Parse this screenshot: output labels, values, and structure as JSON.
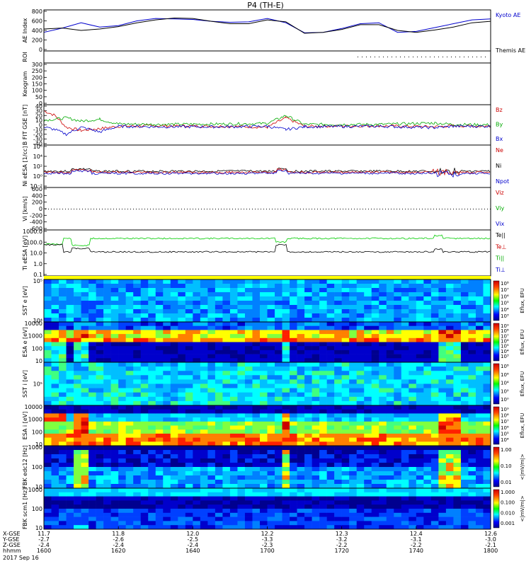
{
  "title": "P4 (TH-E)",
  "chart_data": {
    "type": "line",
    "title": "P4 (TH-E)",
    "date": "2017 Sep 16",
    "panels": [
      {
        "id": "ae",
        "ylabel": "AE Index",
        "yticks": [
          "0",
          "200",
          "400",
          "600",
          "800"
        ],
        "legend": [
          {
            "text": "Kyoto AE",
            "color": "#0000cc"
          },
          {
            "text": "Themis AE",
            "color": "#000000"
          }
        ],
        "series": [
          {
            "name": "Kyoto AE",
            "color": "#0000cc",
            "x": [
              "16:00",
              "16:05",
              "16:10",
              "16:15",
              "16:20",
              "16:25",
              "16:30",
              "16:35",
              "16:40",
              "16:45",
              "16:50",
              "16:55",
              "17:00",
              "17:05",
              "17:10",
              "17:15",
              "17:20",
              "17:25",
              "17:30",
              "17:35",
              "17:40",
              "17:45",
              "17:50",
              "17:55",
              "18:00"
            ],
            "y": [
              360,
              450,
              560,
              470,
              500,
              600,
              650,
              640,
              630,
              590,
              570,
              580,
              650,
              560,
              350,
              360,
              440,
              540,
              560,
              360,
              380,
              460,
              540,
              620,
              640
            ]
          },
          {
            "name": "Themis AE",
            "color": "#000000",
            "x": [
              "16:00",
              "16:05",
              "16:10",
              "16:15",
              "16:20",
              "16:25",
              "16:30",
              "16:35",
              "16:40",
              "16:45",
              "16:50",
              "16:55",
              "17:00",
              "17:05",
              "17:10",
              "17:15",
              "17:20",
              "17:25",
              "17:30",
              "17:35",
              "17:40",
              "17:45",
              "17:50",
              "17:55",
              "18:00"
            ],
            "y": [
              430,
              450,
              400,
              430,
              480,
              560,
              620,
              660,
              650,
              590,
              540,
              540,
              620,
              580,
              340,
              360,
              420,
              520,
              520,
              400,
              360,
              410,
              470,
              560,
              590
            ]
          }
        ]
      },
      {
        "id": "roi",
        "ylabel": "ROI",
        "yticks": [],
        "note": "dotted"
      },
      {
        "id": "keogram",
        "ylabel": "Keogram",
        "yticks": [
          "0",
          "50",
          "100",
          "150",
          "200",
          "250",
          "300"
        ]
      },
      {
        "id": "bfgm",
        "ylabel": "B FIT GSE [nT]",
        "yticks": [
          "-40",
          "-30",
          "-20",
          "-10",
          "0",
          "10",
          "20",
          "30",
          "40"
        ],
        "legend": [
          {
            "text": "Bz",
            "color": "#cc0000"
          },
          {
            "text": "By",
            "color": "#00aa00"
          },
          {
            "text": "Bx",
            "color": "#0000cc"
          }
        ],
        "series": [
          {
            "name": "Bz",
            "color": "#cc0000",
            "x": [
              "16:00",
              "16:03",
              "16:06",
              "16:10",
              "16:15",
              "16:20",
              "16:30",
              "16:50",
              "17:00",
              "17:05",
              "17:10",
              "17:30",
              "17:45",
              "17:50",
              "18:00"
            ],
            "y": [
              30,
              20,
              -5,
              -12,
              -8,
              -3,
              -2,
              -3,
              -5,
              15,
              -3,
              -2,
              -4,
              -2,
              -3
            ]
          },
          {
            "name": "By",
            "color": "#00aa00",
            "x": [
              "16:00",
              "16:03",
              "16:06",
              "16:10",
              "16:15",
              "16:20",
              "16:30",
              "16:50",
              "17:00",
              "17:05",
              "17:10",
              "17:30",
              "17:45",
              "17:50",
              "18:00"
            ],
            "y": [
              10,
              12,
              15,
              8,
              12,
              2,
              1,
              2,
              3,
              20,
              1,
              1,
              4,
              1,
              0
            ]
          },
          {
            "name": "Bx",
            "color": "#0000cc",
            "x": [
              "16:00",
              "16:03",
              "16:06",
              "16:10",
              "16:15",
              "16:20",
              "16:30",
              "16:50",
              "17:00",
              "17:05",
              "17:10",
              "17:30",
              "17:45",
              "17:50",
              "18:00"
            ],
            "y": [
              -5,
              -10,
              -20,
              -5,
              -15,
              -3,
              -4,
              -4,
              -3,
              -10,
              -4,
              -3,
              -6,
              -3,
              -3
            ]
          }
        ]
      },
      {
        "id": "ni",
        "ylabel": "Ni eESA [1/cc]",
        "yticks": [
          "10⁻²",
          "10⁰",
          "10²",
          "10⁴",
          "10⁶"
        ],
        "legend": [
          {
            "text": "Ne",
            "color": "#cc0000"
          },
          {
            "text": "Ni",
            "color": "#000000"
          },
          {
            "text": "Npot",
            "color": "#0000cc"
          }
        ]
      },
      {
        "id": "vi",
        "ylabel": "Vi [km/s]",
        "yticks": [
          "-600",
          "-400",
          "-200",
          "0",
          "200",
          "400",
          "600"
        ],
        "legend": [
          {
            "text": "Viz",
            "color": "#cc0000"
          },
          {
            "text": "Viy",
            "color": "#00aa00"
          },
          {
            "text": "Vix",
            "color": "#0000cc"
          }
        ]
      },
      {
        "id": "ti",
        "ylabel": "Ti eESA [eV]",
        "yticks": [
          "0.1",
          "1.0",
          "10.0",
          "100.0",
          "1000.0"
        ],
        "legend": [
          {
            "text": "Te||",
            "color": "#000000"
          },
          {
            "text": "Te⊥",
            "color": "#cc0000"
          },
          {
            "text": "Ti||",
            "color": "#00aa00"
          },
          {
            "text": "Ti⊥",
            "color": "#0000cc"
          }
        ]
      },
      {
        "id": "sst_e",
        "ylabel": "SST e [eV]",
        "yticks": [
          "10⁴",
          "10⁵"
        ],
        "cbar_label": "Eflux, EFU",
        "cbar_ticks": [
          "10⁸",
          "10⁷",
          "10⁶",
          "10⁵",
          "10⁴",
          "10³"
        ]
      },
      {
        "id": "esa_e",
        "ylabel": "ESA e [eV]",
        "yticks": [
          "10",
          "100",
          "1000",
          "10000"
        ],
        "cbar_label": "Eflux, EFU",
        "cbar_ticks": [
          "10⁹",
          "10⁸",
          "10⁷",
          "10⁶",
          "10⁵",
          "10⁴",
          "10³"
        ]
      },
      {
        "id": "sst_i",
        "ylabel": "SST i [eV]",
        "yticks": [
          "10⁵"
        ],
        "cbar_label": "Eflux, EFU",
        "cbar_ticks": [
          "10⁸",
          "10⁶",
          "10⁴",
          "10²",
          "10⁰"
        ]
      },
      {
        "id": "esa_i",
        "ylabel": "ESA i [eV]",
        "yticks": [
          "10",
          "100",
          "1000",
          "10000"
        ],
        "cbar_label": "Eflux, EFU",
        "cbar_ticks": [
          "10⁹",
          "10⁸",
          "10⁷",
          "10⁶",
          "10⁵",
          "10⁴"
        ]
      },
      {
        "id": "fbk_e12",
        "ylabel": "FBK edc12 [Hz]",
        "yticks": [
          "10",
          "100",
          "1000"
        ],
        "cbar_label": "<|mV/m|>",
        "cbar_ticks": [
          "1.00",
          "0.10",
          "0.01"
        ]
      },
      {
        "id": "fbk_scm",
        "ylabel": "FBK scm1 [Hz]",
        "yticks": [
          "10",
          "100",
          "1000"
        ],
        "cbar_label": "<|mV/m|>",
        "cbar_ticks": [
          "1.000",
          "0.100",
          "0.010",
          "0.001"
        ]
      }
    ],
    "xaxis": {
      "row_labels": [
        "X-GSE",
        "Y-GSE",
        "Z-GSE",
        "hhmm"
      ],
      "ticks": [
        {
          "x": "16:00",
          "values": [
            "11.7",
            "-2.7",
            "-2.4",
            "1600"
          ]
        },
        {
          "x": "16:20",
          "values": [
            "11.8",
            "-2.6",
            "-2.4",
            "1620"
          ]
        },
        {
          "x": "16:40",
          "values": [
            "12.0",
            "-2.5",
            "-2.4",
            "1640"
          ]
        },
        {
          "x": "17:00",
          "values": [
            "12.2",
            "-3.3",
            "-2.3",
            "1700"
          ]
        },
        {
          "x": "17:20",
          "values": [
            "12.3",
            "-3.2",
            "-2.2",
            "1720"
          ]
        },
        {
          "x": "17:40",
          "values": [
            "12.4",
            "-3.1",
            "-2.2",
            "1740"
          ]
        },
        {
          "x": "18:00",
          "values": [
            "12.6",
            "-3.0",
            "-2.1",
            "1800"
          ]
        }
      ]
    }
  }
}
